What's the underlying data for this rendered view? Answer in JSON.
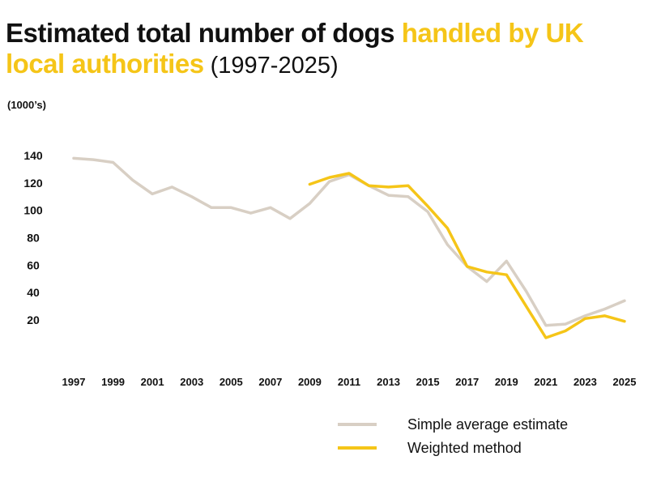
{
  "title": {
    "part1": "Estimated total number of dogs ",
    "part2": "handled by UK local authorities",
    "part3": " (1997-2025)"
  },
  "unit_label": "(1000’s)",
  "colors": {
    "simple": "#d8cfc4",
    "weighted": "#f5c518",
    "accent": "#f5c518"
  },
  "chart_data": {
    "type": "line",
    "title": "Estimated total number of dogs handled by UK local authorities (1997-2025)",
    "ylabel": "(1000’s)",
    "xlabel": "",
    "yticks": [
      20,
      40,
      60,
      80,
      100,
      120,
      140
    ],
    "xticks": [
      1997,
      1999,
      2001,
      2003,
      2005,
      2007,
      2009,
      2011,
      2013,
      2015,
      2017,
      2019,
      2021,
      2023,
      2025
    ],
    "xlim": [
      1997,
      2025
    ],
    "series": [
      {
        "name": "Simple average estimate",
        "color": "#d8cfc4",
        "x": [
          1997,
          1998,
          1999,
          2000,
          2001,
          2002,
          2003,
          2004,
          2005,
          2006,
          2007,
          2008,
          2009,
          2010,
          2011,
          2012,
          2013,
          2014,
          2015,
          2016,
          2017,
          2018,
          2019,
          2020,
          2021,
          2022,
          2023,
          2024,
          2025
        ],
        "values": [
          138,
          137,
          135,
          122,
          112,
          117,
          110,
          102,
          102,
          98,
          102,
          94,
          105,
          121,
          126,
          118,
          111,
          110,
          99,
          75,
          59,
          48,
          63,
          41,
          16,
          17,
          23,
          28,
          34
        ]
      },
      {
        "name": "Weighted method",
        "color": "#f5c518",
        "x": [
          2009,
          2010,
          2011,
          2012,
          2013,
          2014,
          2015,
          2016,
          2017,
          2018,
          2019,
          2020,
          2021,
          2022,
          2023,
          2024,
          2025
        ],
        "values": [
          119,
          124,
          127,
          118,
          117,
          118,
          103,
          87,
          59,
          55,
          53,
          30,
          7,
          12,
          21,
          23,
          19
        ]
      }
    ],
    "legend": {
      "position": "bottom-right",
      "entries": [
        "Simple average estimate",
        "Weighted method"
      ]
    }
  }
}
